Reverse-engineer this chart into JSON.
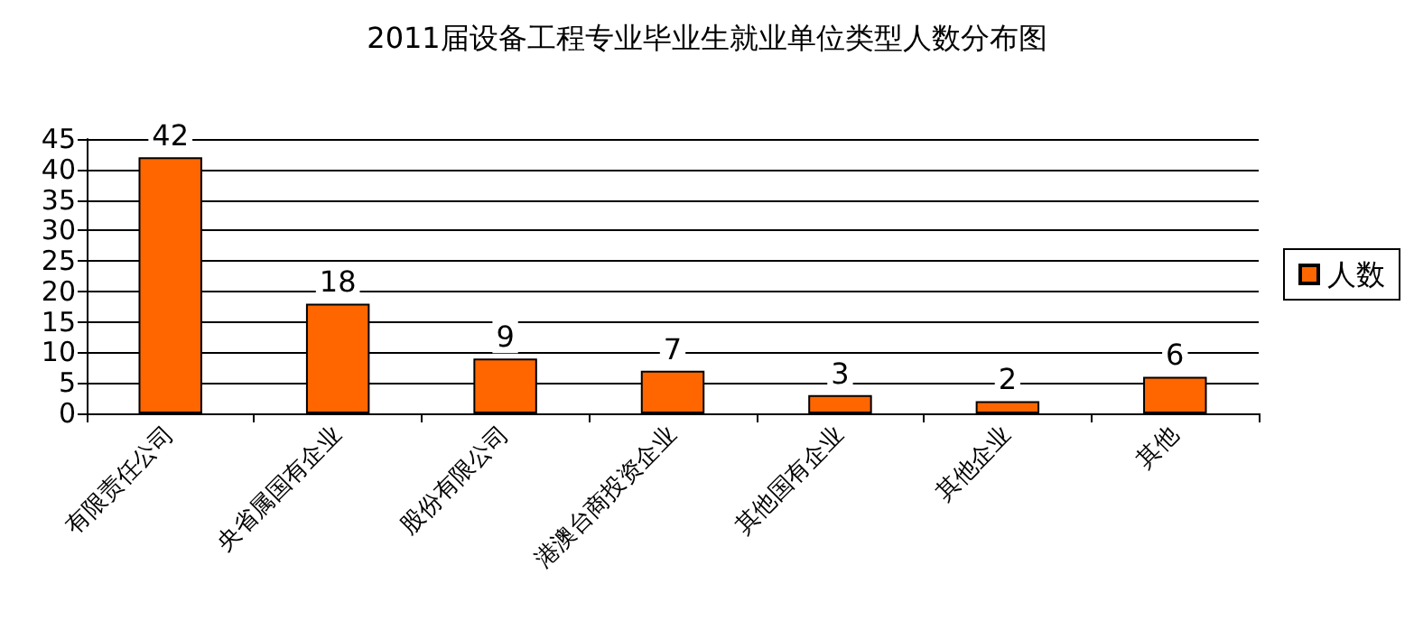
{
  "chart_data": {
    "type": "bar",
    "title": "2011届设备工程专业毕业生就业单位类型人数分布图",
    "categories": [
      "有限责任公司",
      "央省属国有企业",
      "股份有限公司",
      "港澳台商投资企业",
      "其他国有企业",
      "其他企业",
      "其他"
    ],
    "series": [
      {
        "name": "人数",
        "color": "#ff6600",
        "values": [
          42,
          18,
          9,
          7,
          3,
          2,
          6
        ]
      }
    ],
    "ylim": [
      0,
      45
    ],
    "yticks": [
      0,
      5,
      10,
      15,
      20,
      25,
      30,
      35,
      40,
      45
    ],
    "grid": "y",
    "legend": "right",
    "data_labels": true
  }
}
